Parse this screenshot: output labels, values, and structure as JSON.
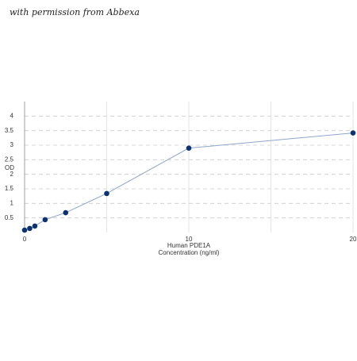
{
  "watermark": "with permission from Abbexa",
  "chart_data": {
    "type": "line",
    "x_label": [
      "Human PDE1A",
      "Concentration (ng/ml)"
    ],
    "y_label": "OD",
    "x": [
      0,
      0.3125,
      0.625,
      1.25,
      2.5,
      5,
      10,
      20
    ],
    "series": [
      {
        "color": "#0d3272",
        "line_color": "#8ea6cc",
        "values": [
          0.08,
          0.14,
          0.22,
          0.44,
          0.68,
          1.34,
          2.9,
          3.42
        ]
      }
    ],
    "xlim": [
      0,
      20
    ],
    "xticks": [
      0,
      10,
      20
    ],
    "x_gridlines": [
      5,
      10,
      15,
      20
    ],
    "ylim": [
      0,
      4.5
    ],
    "yticks": [
      0.5,
      1,
      1.5,
      2,
      2.5,
      3,
      3.5,
      4
    ],
    "grid": true
  }
}
